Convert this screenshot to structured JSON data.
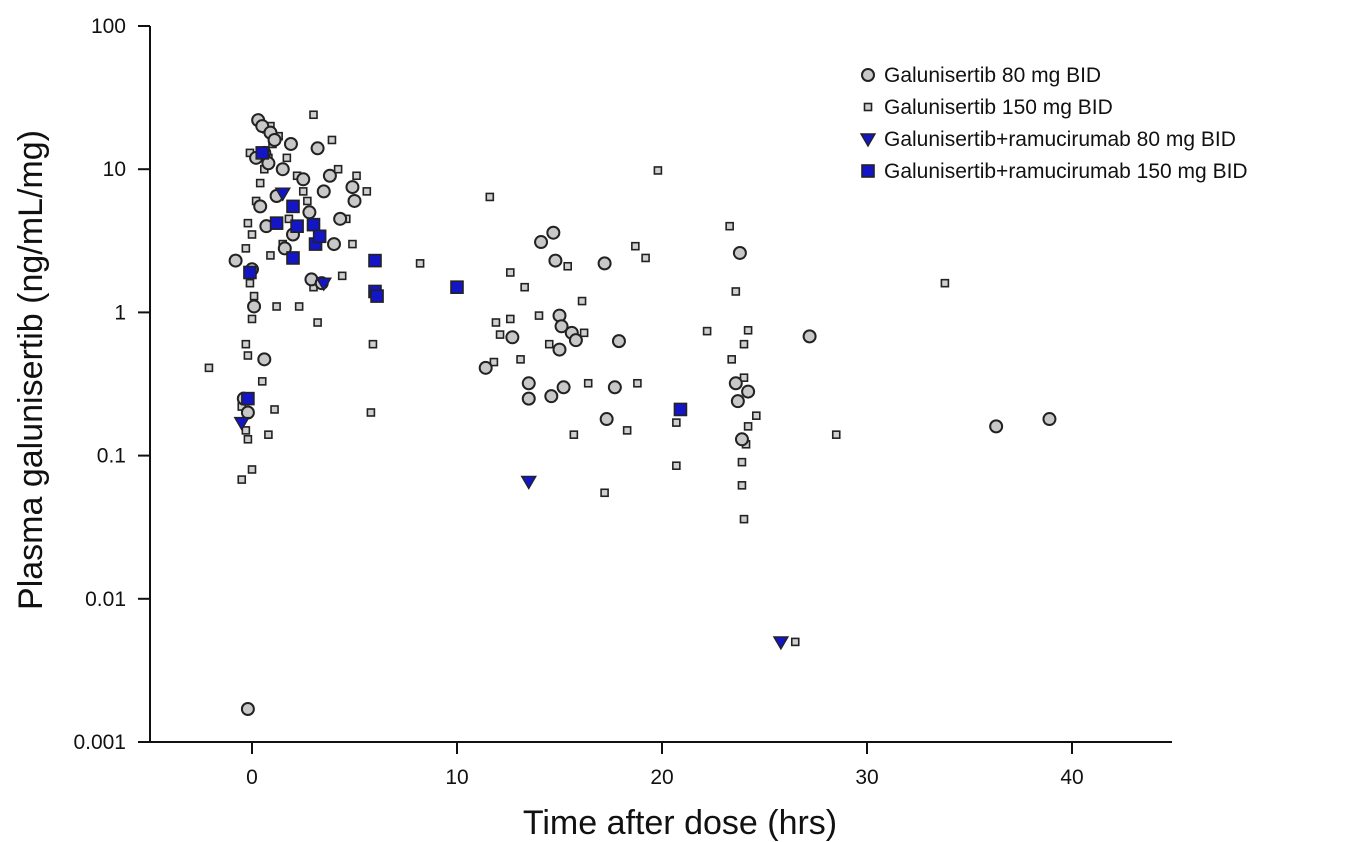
{
  "chart_data": {
    "type": "scatter",
    "xlabel": "Time after dose (hrs)",
    "ylabel": "Plasma galunisertib (ng/mL/mg)",
    "xlim": [
      -5,
      45
    ],
    "ylim": [
      0.001,
      100
    ],
    "y_scale": "log",
    "x_ticks": [
      0,
      10,
      20,
      30,
      40
    ],
    "x_tick_labels": [
      "0",
      "10",
      "20",
      "30",
      "40"
    ],
    "y_ticks": [
      0.001,
      0.01,
      0.1,
      1,
      10,
      100
    ],
    "y_tick_labels": [
      "0.001",
      "0.01",
      "0.1",
      "1",
      "10",
      "100"
    ],
    "grid": false,
    "legend_position": "top-right",
    "series": [
      {
        "name": "Galunisertib 80 mg BID",
        "marker": "circle",
        "color": "#c8c8c8",
        "points": [
          [
            0.3,
            22
          ],
          [
            0.5,
            20
          ],
          [
            0.9,
            18
          ],
          [
            1.1,
            16
          ],
          [
            1.9,
            15
          ],
          [
            3.2,
            14
          ],
          [
            0.6,
            13
          ],
          [
            0.2,
            12
          ],
          [
            0.8,
            11
          ],
          [
            1.5,
            10
          ],
          [
            3.8,
            9
          ],
          [
            2.5,
            8.5
          ],
          [
            4.9,
            7.5
          ],
          [
            3.5,
            7
          ],
          [
            1.2,
            6.5
          ],
          [
            5.0,
            6
          ],
          [
            0.4,
            5.5
          ],
          [
            2.8,
            5
          ],
          [
            4.3,
            4.5
          ],
          [
            0.7,
            4
          ],
          [
            2.0,
            3.5
          ],
          [
            4.0,
            3
          ],
          [
            1.6,
            2.8
          ],
          [
            -0.8,
            2.3
          ],
          [
            0.0,
            2.0
          ],
          [
            2.9,
            1.7
          ],
          [
            3.4,
            1.6
          ],
          [
            0.1,
            1.1
          ],
          [
            0.6,
            0.47
          ],
          [
            -0.4,
            0.25
          ],
          [
            -0.2,
            0.2
          ],
          [
            -0.2,
            0.0017
          ],
          [
            14.1,
            3.1
          ],
          [
            14.7,
            3.6
          ],
          [
            14.8,
            2.3
          ],
          [
            17.2,
            2.2
          ],
          [
            15.0,
            0.95
          ],
          [
            15.1,
            0.8
          ],
          [
            15.6,
            0.72
          ],
          [
            15.8,
            0.64
          ],
          [
            17.9,
            0.63
          ],
          [
            12.7,
            0.67
          ],
          [
            15.0,
            0.55
          ],
          [
            11.4,
            0.41
          ],
          [
            13.5,
            0.32
          ],
          [
            15.2,
            0.3
          ],
          [
            17.7,
            0.3
          ],
          [
            13.5,
            0.25
          ],
          [
            14.6,
            0.26
          ],
          [
            17.3,
            0.18
          ],
          [
            23.8,
            2.6
          ],
          [
            23.6,
            0.32
          ],
          [
            24.2,
            0.28
          ],
          [
            23.7,
            0.24
          ],
          [
            23.9,
            0.13
          ],
          [
            27.2,
            0.68
          ],
          [
            36.3,
            0.16
          ],
          [
            38.9,
            0.18
          ]
        ]
      },
      {
        "name": "Galunisertib 150 mg BID",
        "marker": "small-square",
        "color": "#d0d0d0",
        "points": [
          [
            -2.1,
            0.41
          ],
          [
            -0.5,
            0.22
          ],
          [
            -0.3,
            0.15
          ],
          [
            -0.2,
            0.13
          ],
          [
            0.0,
            0.08
          ],
          [
            -0.5,
            0.068
          ],
          [
            -0.3,
            0.6
          ],
          [
            -0.2,
            0.5
          ],
          [
            0.0,
            0.9
          ],
          [
            0.1,
            1.3
          ],
          [
            -0.1,
            1.6
          ],
          [
            -0.3,
            2.8
          ],
          [
            0.0,
            3.5
          ],
          [
            -0.2,
            4.2
          ],
          [
            0.2,
            6
          ],
          [
            0.4,
            8
          ],
          [
            0.6,
            10
          ],
          [
            0.8,
            12
          ],
          [
            1.0,
            15
          ],
          [
            -0.1,
            13
          ],
          [
            0.7,
            19
          ],
          [
            0.9,
            20
          ],
          [
            1.3,
            17
          ],
          [
            1.7,
            12
          ],
          [
            2.2,
            9
          ],
          [
            2.5,
            7
          ],
          [
            2.7,
            6
          ],
          [
            1.8,
            4.5
          ],
          [
            1.5,
            3
          ],
          [
            0.9,
            2.5
          ],
          [
            0.5,
            0.33
          ],
          [
            0.8,
            0.14
          ],
          [
            1.1,
            0.21
          ],
          [
            1.2,
            1.1
          ],
          [
            2.3,
            1.1
          ],
          [
            3.0,
            1.5
          ],
          [
            3.2,
            0.85
          ],
          [
            4.4,
            1.8
          ],
          [
            3.0,
            24
          ],
          [
            3.9,
            16
          ],
          [
            4.2,
            10
          ],
          [
            5.1,
            9
          ],
          [
            5.6,
            7
          ],
          [
            4.6,
            4.5
          ],
          [
            4.9,
            3
          ],
          [
            5.9,
            0.6
          ],
          [
            5.8,
            0.2
          ],
          [
            8.2,
            2.2
          ],
          [
            11.6,
            6.4
          ],
          [
            12.6,
            1.9
          ],
          [
            13.3,
            1.5
          ],
          [
            11.9,
            0.85
          ],
          [
            12.1,
            0.7
          ],
          [
            12.6,
            0.9
          ],
          [
            13.1,
            0.47
          ],
          [
            11.8,
            0.45
          ],
          [
            14.0,
            0.95
          ],
          [
            14.5,
            0.6
          ],
          [
            15.4,
            2.1
          ],
          [
            16.1,
            1.2
          ],
          [
            15.7,
            0.14
          ],
          [
            16.4,
            0.32
          ],
          [
            16.2,
            0.72
          ],
          [
            18.7,
            2.9
          ],
          [
            19.2,
            2.4
          ],
          [
            19.8,
            9.8
          ],
          [
            18.8,
            0.32
          ],
          [
            18.3,
            0.15
          ],
          [
            20.7,
            0.17
          ],
          [
            20.7,
            0.085
          ],
          [
            17.2,
            0.055
          ],
          [
            22.2,
            0.74
          ],
          [
            23.3,
            4
          ],
          [
            23.6,
            1.4
          ],
          [
            23.4,
            0.47
          ],
          [
            24.0,
            0.6
          ],
          [
            24.2,
            0.75
          ],
          [
            24.0,
            0.35
          ],
          [
            24.6,
            0.19
          ],
          [
            24.2,
            0.16
          ],
          [
            24.1,
            0.12
          ],
          [
            23.9,
            0.09
          ],
          [
            23.9,
            0.062
          ],
          [
            24.0,
            0.036
          ],
          [
            26.5,
            0.005
          ],
          [
            28.5,
            0.14
          ],
          [
            33.8,
            1.6
          ]
        ]
      },
      {
        "name": "Galunisertib+ramucirumab 80 mg BID",
        "marker": "triangle-down",
        "color": "#1515c8",
        "points": [
          [
            -0.5,
            0.17
          ],
          [
            1.5,
            6.8
          ],
          [
            3.5,
            1.6
          ],
          [
            13.5,
            0.066
          ],
          [
            25.8,
            0.005
          ]
        ]
      },
      {
        "name": "Galunisertib+ramucirumab 150 mg BID",
        "marker": "square",
        "color": "#1515c8",
        "points": [
          [
            0.5,
            13
          ],
          [
            1.2,
            4.2
          ],
          [
            2.0,
            5.5
          ],
          [
            2.2,
            4
          ],
          [
            3.0,
            4.1
          ],
          [
            3.1,
            3
          ],
          [
            3.3,
            3.4
          ],
          [
            2.0,
            2.4
          ],
          [
            -0.2,
            0.25
          ],
          [
            -0.1,
            1.9
          ],
          [
            6.0,
            2.3
          ],
          [
            6.0,
            1.4
          ],
          [
            6.1,
            1.3
          ],
          [
            10.0,
            1.5
          ],
          [
            20.9,
            0.21
          ]
        ]
      }
    ]
  }
}
